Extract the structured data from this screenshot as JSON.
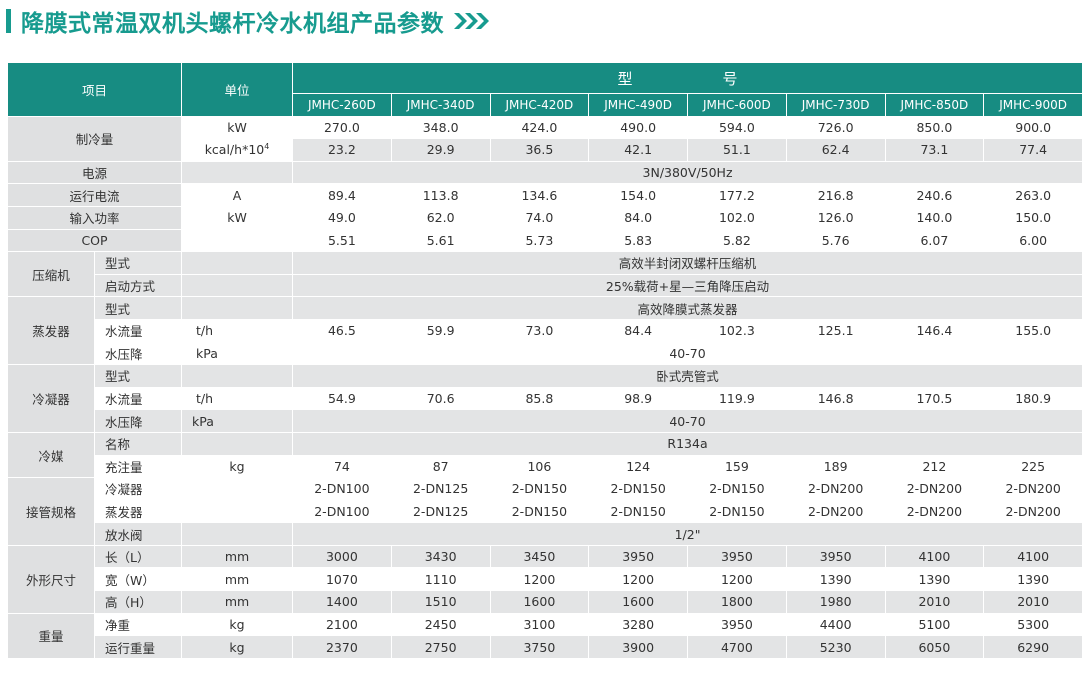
{
  "title": "降膜式常温双机头螺杆冷水机组产品参数",
  "header": {
    "item": "项目",
    "unit": "单位",
    "model": "型　　号"
  },
  "models": [
    "JMHC-260D",
    "JMHC-340D",
    "JMHC-420D",
    "JMHC-490D",
    "JMHC-600D",
    "JMHC-730D",
    "JMHC-850D",
    "JMHC-900D"
  ],
  "rows": {
    "cooling_label": "制冷量",
    "cooling_kw_unit": "kW",
    "cooling_kw": [
      "270.0",
      "348.0",
      "424.0",
      "490.0",
      "594.0",
      "726.0",
      "850.0",
      "900.0"
    ],
    "cooling_kcal_unit": "kcal/h*10",
    "cooling_kcal_exp": "4",
    "cooling_kcal": [
      "23.2",
      "29.9",
      "36.5",
      "42.1",
      "51.1",
      "62.4",
      "73.1",
      "77.4"
    ],
    "power_supply_label": "电源",
    "power_supply_value": "3N/380V/50Hz",
    "current_label": "运行电流",
    "current_unit": "A",
    "current": [
      "89.4",
      "113.8",
      "134.6",
      "154.0",
      "177.2",
      "216.8",
      "240.6",
      "263.0"
    ],
    "input_label": "输入功率",
    "input_unit": "kW",
    "input": [
      "49.0",
      "62.0",
      "74.0",
      "84.0",
      "102.0",
      "126.0",
      "140.0",
      "150.0"
    ],
    "cop_label": "COP",
    "cop": [
      "5.51",
      "5.61",
      "5.73",
      "5.83",
      "5.82",
      "5.76",
      "6.07",
      "6.00"
    ],
    "compressor_label": "压缩机",
    "comp_type_label": "型式",
    "comp_type_value": "高效半封闭双螺杆压缩机",
    "comp_start_label": "启动方式",
    "comp_start_value": "25%载荷+星—三角降压启动",
    "evaporator_label": "蒸发器",
    "evap_type_label": "型式",
    "evap_type_value": "高效降膜式蒸发器",
    "evap_flow_label": "水流量",
    "evap_flow_unit": "t/h",
    "evap_flow": [
      "46.5",
      "59.9",
      "73.0",
      "84.4",
      "102.3",
      "125.1",
      "146.4",
      "155.0"
    ],
    "evap_drop_label": "水压降",
    "evap_drop_unit": "kPa",
    "evap_drop_value": "40-70",
    "condenser_label": "冷凝器",
    "cond_type_label": "型式",
    "cond_type_value": "卧式壳管式",
    "cond_flow_label": "水流量",
    "cond_flow_unit": "t/h",
    "cond_flow": [
      "54.9",
      "70.6",
      "85.8",
      "98.9",
      "119.9",
      "146.8",
      "170.5",
      "180.9"
    ],
    "cond_drop_label": "水压降",
    "cond_drop_unit": "kPa",
    "cond_drop_value": "40-70",
    "refrigerant_label": "冷媒",
    "ref_name_label": "名称",
    "ref_name_value": "R134a",
    "ref_charge_label": "充注量",
    "ref_charge_unit": "kg",
    "ref_charge": [
      "74",
      "87",
      "106",
      "124",
      "159",
      "189",
      "212",
      "225"
    ],
    "pipe_label": "接管规格",
    "pipe_cond_label": "冷凝器",
    "pipe_cond": [
      "2-DN100",
      "2-DN125",
      "2-DN150",
      "2-DN150",
      "2-DN150",
      "2-DN200",
      "2-DN200",
      "2-DN200"
    ],
    "pipe_evap_label": "蒸发器",
    "pipe_evap": [
      "2-DN100",
      "2-DN125",
      "2-DN150",
      "2-DN150",
      "2-DN150",
      "2-DN200",
      "2-DN200",
      "2-DN200"
    ],
    "pipe_drain_label": "放水阀",
    "pipe_drain_value": "1/2\"",
    "dim_label": "外形尺寸",
    "dim_l_label": "长（L）",
    "dim_l_unit": "mm",
    "dim_l": [
      "3000",
      "3430",
      "3450",
      "3950",
      "3950",
      "3950",
      "4100",
      "4100"
    ],
    "dim_w_label": "宽（W）",
    "dim_w_unit": "mm",
    "dim_w": [
      "1070",
      "1110",
      "1200",
      "1200",
      "1200",
      "1390",
      "1390",
      "1390"
    ],
    "dim_h_label": "高（H）",
    "dim_h_unit": "mm",
    "dim_h": [
      "1400",
      "1510",
      "1600",
      "1600",
      "1800",
      "1980",
      "2010",
      "2010"
    ],
    "weight_label": "重量",
    "net_label": "净重",
    "net_unit": "kg",
    "net": [
      "2100",
      "2450",
      "3100",
      "3280",
      "3950",
      "4400",
      "5100",
      "5300"
    ],
    "run_label": "运行重量",
    "run_unit": "kg",
    "run": [
      "2370",
      "2750",
      "3750",
      "3900",
      "4700",
      "5230",
      "6050",
      "6290"
    ]
  },
  "colors": {
    "accent": "#179b8f",
    "header_bg": "#178c82",
    "row_gray": "#e3e4e5",
    "category_bg": "#dfe0e1"
  },
  "icons": {
    "title_arrows": "triple-chevron-right-icon"
  }
}
